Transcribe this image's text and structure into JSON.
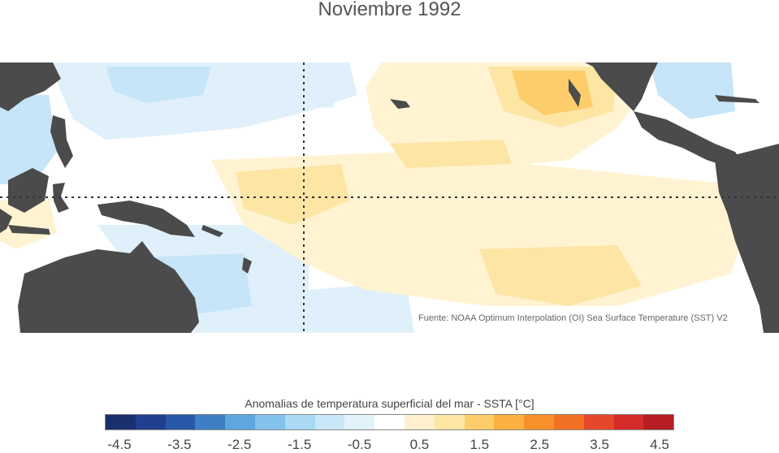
{
  "title": "Noviembre 1992",
  "source": "Fuente: NOAA Optimum Interpolation (OI) Sea Surface Temperature (SST) V2",
  "legend": {
    "title": "Anomalias de temperatura superficial del mar - SSTA  [°C]",
    "colors": [
      "#1b2f6e",
      "#213f8e",
      "#2a58a8",
      "#3e7fc3",
      "#5da7de",
      "#82c2ec",
      "#a9d9f5",
      "#c8e7f8",
      "#e2f2fb",
      "#ffffff",
      "#fff1cf",
      "#fde5a4",
      "#fccd6a",
      "#fbb040",
      "#f7902a",
      "#f27024",
      "#e4482a",
      "#d42b2b",
      "#b71e24"
    ],
    "ticks": [
      "-4.5",
      "-3.5",
      "-2.5",
      "-1.5",
      "-0.5",
      "0.5",
      "1.5",
      "2.5",
      "3.5",
      "4.5"
    ]
  },
  "colors": {
    "land": "#4b4b4b",
    "warm_light": "#fff3d2",
    "warm_mid": "#fde5a4",
    "warm_strong": "#fccd6a",
    "cool_light": "#dff0fb",
    "cool_mid": "#c6e5f8",
    "cool_strong": "#a9d9f5"
  }
}
